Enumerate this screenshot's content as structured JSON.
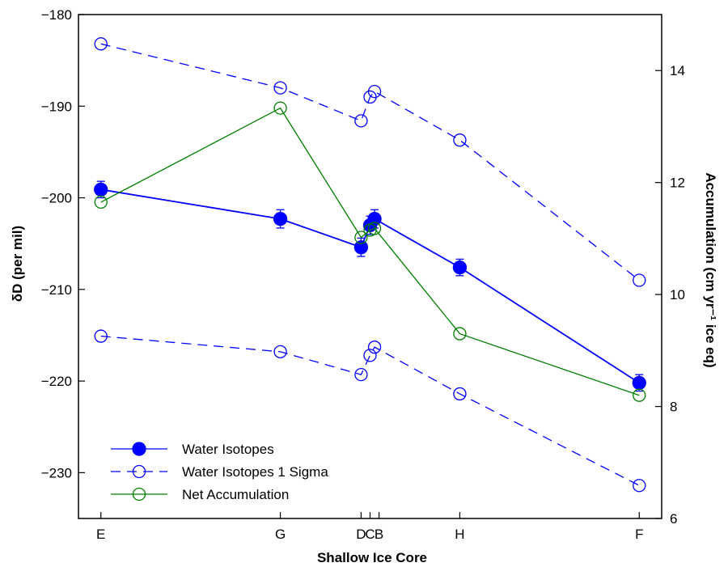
{
  "chart_data": {
    "type": "line",
    "xlabel": "Shallow Ice Core",
    "ylabel": "δD (per mil)",
    "y2label": "Accumulation (cm yr⁻¹ ice eq)",
    "ylim": [
      -235,
      -180
    ],
    "y2lim": [
      6,
      15
    ],
    "yticks": [
      -180,
      -190,
      -200,
      -210,
      -220,
      -230
    ],
    "y2ticks": [
      6,
      8,
      10,
      12,
      14
    ],
    "grid": false,
    "legend_position": "bottom-left",
    "x_categories": [
      {
        "label": "E",
        "x": 0
      },
      {
        "label": "G",
        "x": 2
      },
      {
        "label": "D",
        "x": 2.9
      },
      {
        "label": "C",
        "x": 3
      },
      {
        "label": "B",
        "x": 3.1
      },
      {
        "label": "H",
        "x": 4
      },
      {
        "label": "F",
        "x": 6
      }
    ],
    "series": [
      {
        "name": "Water Isotopes",
        "axis": "left",
        "color": "#0000ff",
        "style": "solid",
        "marker": "filled-circle",
        "x": [
          0,
          2,
          2.9,
          3,
          3.05,
          4,
          6
        ],
        "y": [
          -199.1,
          -202.3,
          -205.4,
          -203.0,
          -202.3,
          -207.6,
          -220.2
        ],
        "err": [
          0.9,
          1.0,
          1.0,
          1.0,
          1.0,
          0.9,
          0.9
        ]
      },
      {
        "name": "Water Isotopes 1 Sigma",
        "axis": "left",
        "color": "#0000ff",
        "style": "dashed",
        "marker": "open-circle",
        "x": [
          0,
          2,
          2.9,
          3,
          3.05,
          4,
          6
        ],
        "y": [
          -183.2,
          -188.0,
          -191.6,
          -189.0,
          -188.4,
          -193.7,
          -209.0
        ]
      },
      {
        "name": "",
        "axis": "left",
        "color": "#0000ff",
        "style": "dashed",
        "marker": "open-circle",
        "show_in_legend": false,
        "x": [
          0,
          2,
          2.9,
          3,
          3.05,
          4,
          6
        ],
        "y": [
          -215.1,
          -216.8,
          -219.3,
          -217.2,
          -216.3,
          -221.4,
          -231.4
        ]
      },
      {
        "name": "Net Accumulation",
        "axis": "right",
        "color": "#008000",
        "style": "solid",
        "marker": "open-circle",
        "x": [
          0,
          2,
          2.9,
          3,
          3.05,
          4,
          6
        ],
        "y": [
          11.65,
          13.33,
          11.02,
          11.15,
          11.18,
          9.3,
          8.2
        ]
      }
    ]
  }
}
